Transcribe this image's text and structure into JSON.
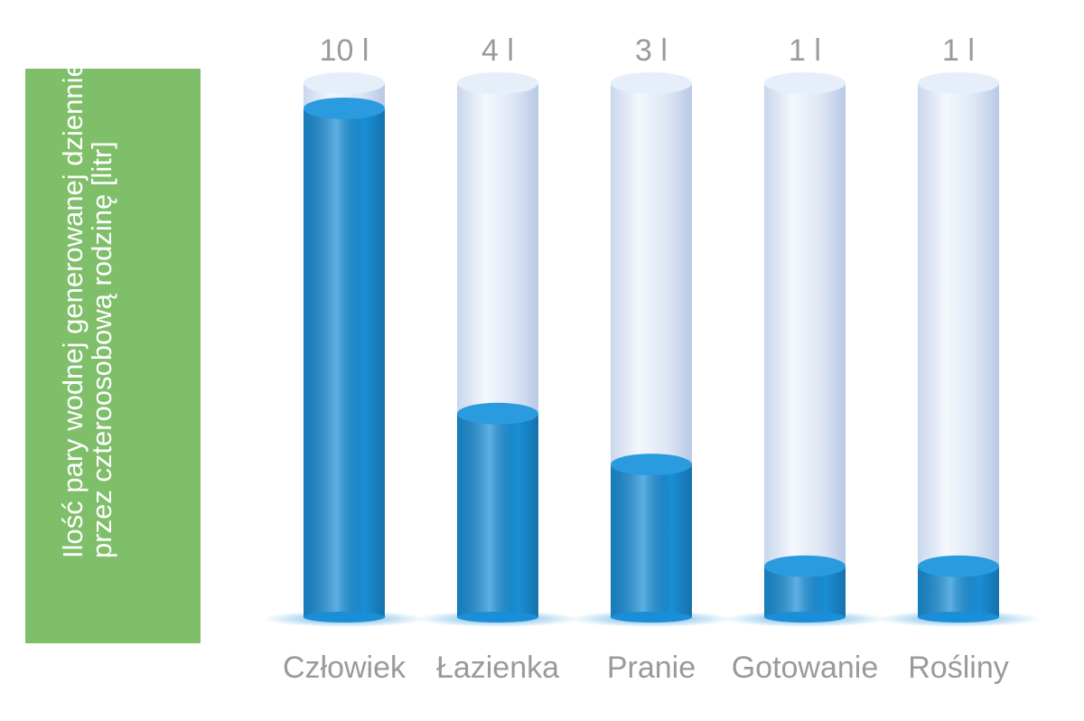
{
  "chart_data": {
    "type": "bar",
    "y_label": "Ilość pary wodnej generowanej dziennie przez czteroosobową rodzinę [litr]",
    "categories": [
      "Człowiek",
      "Łazienka",
      "Pranie",
      "Gotowanie",
      "Rośliny"
    ],
    "values": [
      10,
      4,
      3,
      1,
      1
    ],
    "value_labels": [
      "10 l",
      "4 l",
      "3 l",
      "1 l",
      "1 l"
    ],
    "color": "#1a8ed6"
  }
}
